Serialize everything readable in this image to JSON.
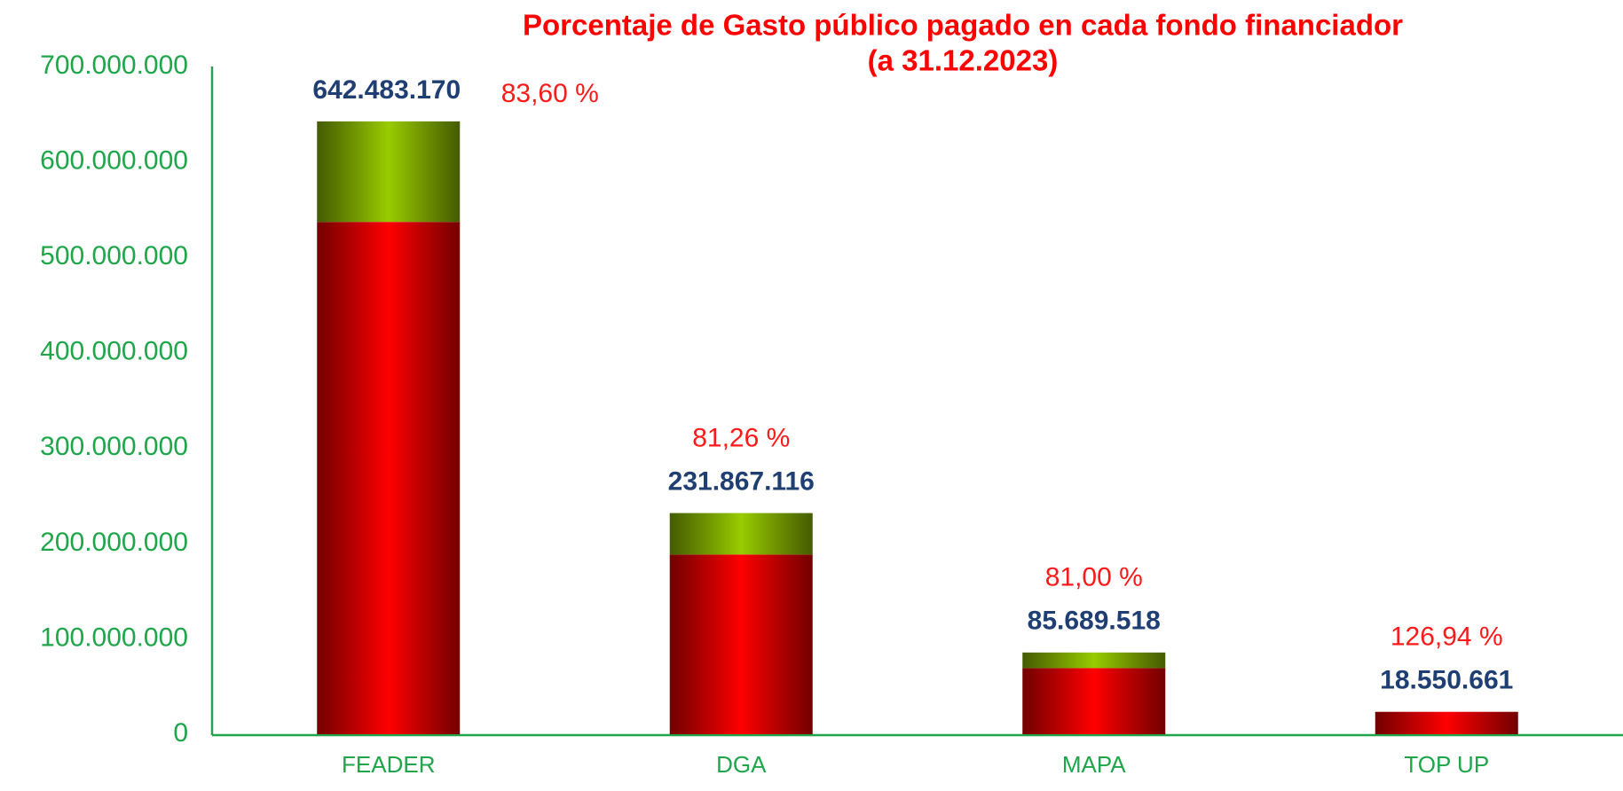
{
  "chart_data": {
    "type": "stacked_bar",
    "title": "Porcentaje de Gasto público pagado en cada fondo financiador",
    "subtitle": "(a 31.12.2023)",
    "categories": [
      "FEADER",
      "DGA",
      "MAPA",
      "TOP UP"
    ],
    "series": [
      {
        "color": "#ff0000",
        "values": [
          537100000,
          188400000,
          69400000,
          23500000
        ]
      },
      {
        "color": "#99cc00",
        "values": [
          105383170,
          43467116,
          16289518,
          null
        ]
      }
    ],
    "totals": {
      "values": [
        642483170,
        231867116,
        85689518,
        18550661
      ],
      "value_labels": [
        "642.483.170",
        "231.867.116",
        "85.689.518",
        "18.550.661"
      ]
    },
    "percentages": {
      "values": [
        83.6,
        81.26,
        81.0,
        126.94
      ],
      "value_labels": [
        "83,60 %",
        "81,26 %",
        "81,00 %",
        "126,94 %"
      ]
    },
    "ylim": [
      0,
      700000000
    ],
    "yticks": [
      0,
      {
        "value": 100000000,
        "label": "100.000.000"
      },
      {
        "value": 200000000,
        "label": "200.000.000"
      },
      {
        "value": 300000000,
        "label": "300.000.000"
      },
      {
        "value": 400000000,
        "label": "400.000.000"
      },
      {
        "value": 500000000,
        "label": "500.000.000"
      },
      {
        "value": 600000000,
        "label": "600.000.000"
      },
      {
        "value": 700000000,
        "label": "700.000.000"
      }
    ],
    "grid": false
  }
}
